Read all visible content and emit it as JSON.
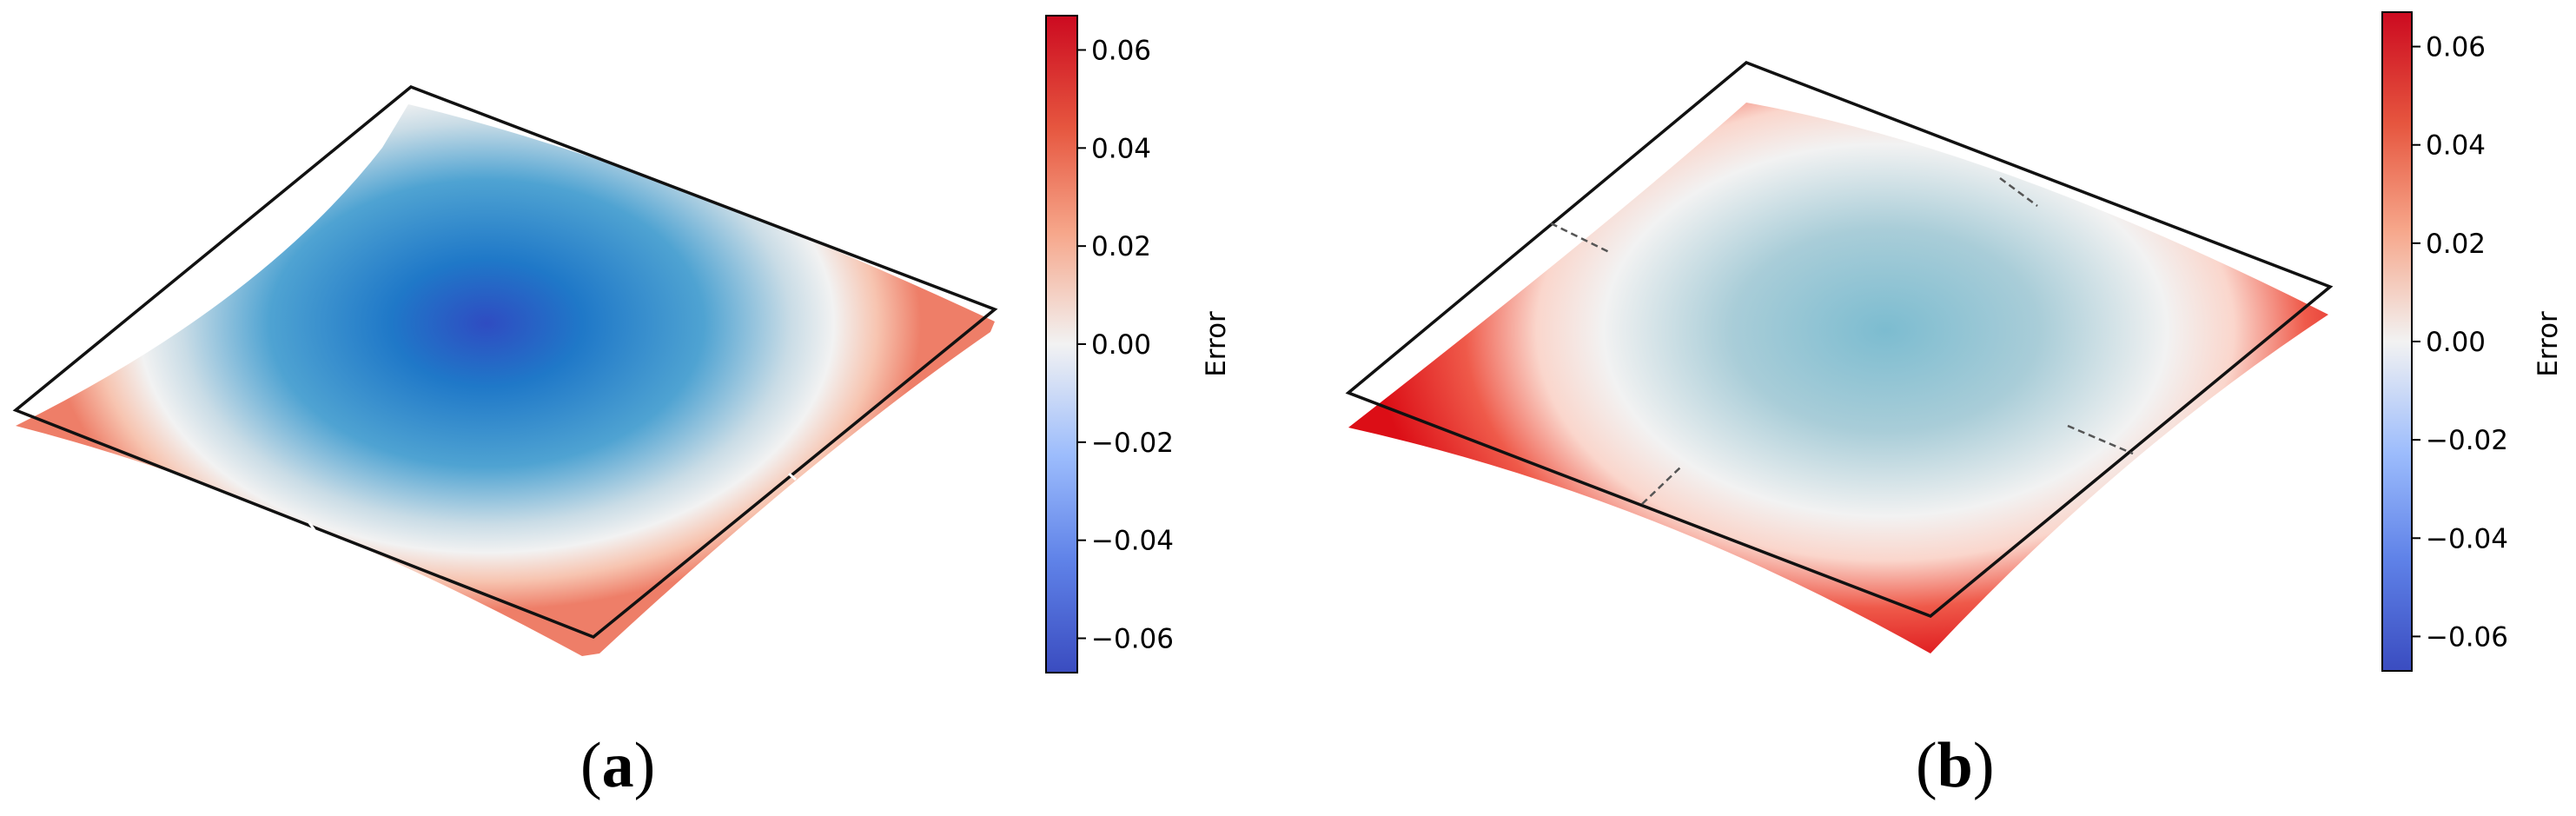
{
  "colors": {
    "cmap_low": "#3a4cc0",
    "cmap_mid": "#f2f2f2",
    "cmap_high": "#cc0a20",
    "outline": "#111111"
  },
  "chart_data": [
    {
      "type": "surface",
      "panel_label": "a",
      "colorbar": {
        "label": "Error",
        "colormap": "coolwarm",
        "range": [
          -0.067,
          0.067
        ],
        "ticks": [
          0.06,
          0.04,
          0.02,
          0.0,
          -0.02,
          -0.04,
          -0.06
        ],
        "tick_labels": [
          "0.06",
          "0.04",
          "0.02",
          "0.00",
          "−0.02",
          "−0.04",
          "−0.06"
        ]
      },
      "surface": {
        "center_error": -0.065,
        "corner_error": 0.03,
        "shape": "concave"
      }
    },
    {
      "type": "surface",
      "panel_label": "b",
      "colorbar": {
        "label": "Error",
        "colormap": "coolwarm",
        "range": [
          -0.067,
          0.067
        ],
        "ticks": [
          0.06,
          0.04,
          0.02,
          0.0,
          -0.02,
          -0.04,
          -0.06
        ],
        "tick_labels": [
          "0.06",
          "0.04",
          "0.02",
          "0.00",
          "−0.02",
          "−0.04",
          "−0.06"
        ]
      },
      "surface": {
        "center_error": -0.02,
        "corner_error": 0.065,
        "shape": "convex"
      }
    }
  ]
}
